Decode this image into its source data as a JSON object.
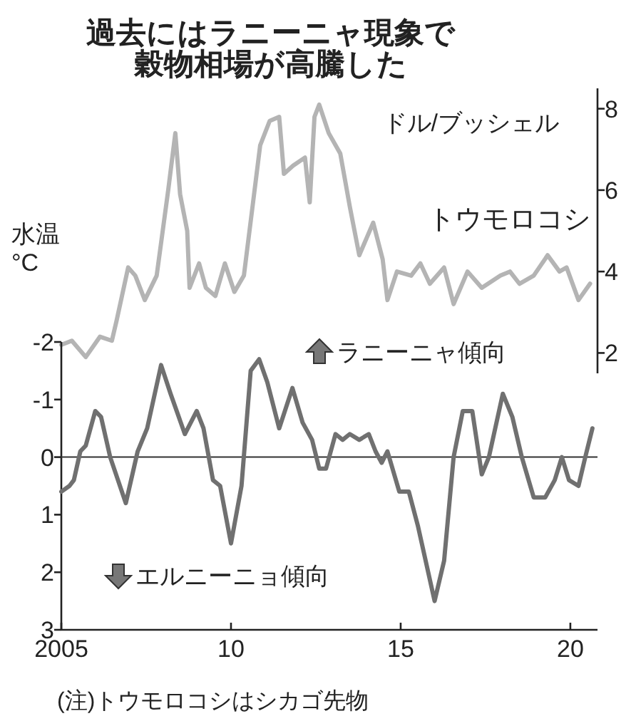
{
  "chart_data": [
    {
      "type": "line",
      "title": "過去にはラニーニャ現象で穀物相場が高騰した",
      "ylabel": "ドル/ブッシェル",
      "xlim": [
        2005,
        2020.8
      ],
      "ylim": [
        1.5,
        8.5
      ],
      "yticks": [
        2,
        4,
        6,
        8
      ],
      "tick_labels": "y",
      "annotations": [
        "(注)トウモロコシはシカゴ先物"
      ],
      "series": [
        {
          "name": "トウモロコシ",
          "color": "#b4b4b4",
          "x": [
            2005.0,
            2005.31,
            2005.72,
            2006.14,
            2006.49,
            2006.63,
            2006.97,
            2007.18,
            2007.46,
            2007.81,
            2008.15,
            2008.36,
            2008.5,
            2008.71,
            2008.78,
            2009.06,
            2009.26,
            2009.54,
            2009.82,
            2010.1,
            2010.38,
            2010.65,
            2010.86,
            2011.14,
            2011.42,
            2011.56,
            2011.83,
            2012.18,
            2012.32,
            2012.46,
            2012.6,
            2012.88,
            2013.22,
            2013.5,
            2013.78,
            2014.19,
            2014.47,
            2014.61,
            2014.89,
            2015.31,
            2015.58,
            2015.86,
            2016.28,
            2016.56,
            2016.97,
            2017.39,
            2017.94,
            2018.22,
            2018.5,
            2018.92,
            2019.33,
            2019.68,
            2019.89,
            2020.24,
            2020.58
          ],
          "values": [
            2.2,
            2.3,
            1.9,
            2.4,
            2.3,
            2.8,
            4.1,
            3.9,
            3.3,
            3.9,
            6.0,
            7.4,
            5.9,
            5.0,
            3.6,
            4.2,
            3.6,
            3.4,
            4.2,
            3.5,
            3.9,
            5.7,
            7.1,
            7.7,
            7.8,
            6.4,
            6.6,
            6.8,
            5.7,
            7.8,
            8.1,
            7.4,
            6.9,
            5.6,
            4.4,
            5.2,
            4.3,
            3.3,
            4.0,
            3.9,
            4.2,
            3.7,
            4.1,
            3.2,
            4.0,
            3.6,
            3.9,
            4.0,
            3.7,
            3.9,
            4.4,
            4.0,
            4.1,
            3.3,
            3.7
          ]
        }
      ]
    },
    {
      "type": "line",
      "ylabel": "水温°C",
      "xlim": [
        2005,
        2020.8
      ],
      "xticks": [
        2005,
        {
          "value": 2010,
          "label": "10"
        },
        {
          "value": 2015,
          "label": "15"
        },
        {
          "value": 2020,
          "label": "20"
        }
      ],
      "ylim": [
        3,
        -2
      ],
      "yticks": [
        -2,
        -1,
        0,
        1,
        2,
        3
      ],
      "annotations": [
        "ラニーニャ傾向",
        "エルニーニョ傾向"
      ],
      "ref_lines": [
        {
          "axis": "y",
          "value": 0,
          "color": "#333333"
        }
      ],
      "series": [
        {
          "color": "#707070",
          "x": [
            2005.0,
            2005.24,
            2005.37,
            2005.56,
            2005.72,
            2006.0,
            2006.17,
            2006.44,
            2006.9,
            2007.25,
            2007.53,
            2007.94,
            2008.22,
            2008.64,
            2008.99,
            2009.19,
            2009.47,
            2009.68,
            2010.0,
            2010.31,
            2010.58,
            2010.83,
            2011.07,
            2011.42,
            2011.81,
            2012.11,
            2012.39,
            2012.6,
            2012.8,
            2013.08,
            2013.29,
            2013.5,
            2013.78,
            2014.06,
            2014.26,
            2014.44,
            2014.61,
            2014.96,
            2015.24,
            2015.51,
            2016.0,
            2016.28,
            2016.56,
            2016.83,
            2017.11,
            2017.39,
            2017.6,
            2018.01,
            2018.29,
            2018.57,
            2018.92,
            2019.26,
            2019.54,
            2019.75,
            2019.96,
            2020.24,
            2020.44,
            2020.65
          ],
          "values": [
            0.6,
            0.5,
            0.4,
            -0.1,
            -0.2,
            -0.8,
            -0.7,
            0.0,
            0.8,
            -0.1,
            -0.5,
            -1.6,
            -1.1,
            -0.4,
            -0.8,
            -0.5,
            0.4,
            0.5,
            1.5,
            0.5,
            -1.5,
            -1.7,
            -1.3,
            -0.5,
            -1.2,
            -0.6,
            -0.3,
            0.2,
            0.2,
            -0.4,
            -0.3,
            -0.4,
            -0.3,
            -0.4,
            -0.1,
            0.1,
            -0.1,
            0.6,
            0.6,
            1.2,
            2.5,
            1.8,
            0.0,
            -0.8,
            -0.8,
            0.3,
            0.0,
            -1.1,
            -0.7,
            0.0,
            0.7,
            0.7,
            0.4,
            0.0,
            0.4,
            0.5,
            0.0,
            -0.5
          ]
        }
      ]
    }
  ]
}
